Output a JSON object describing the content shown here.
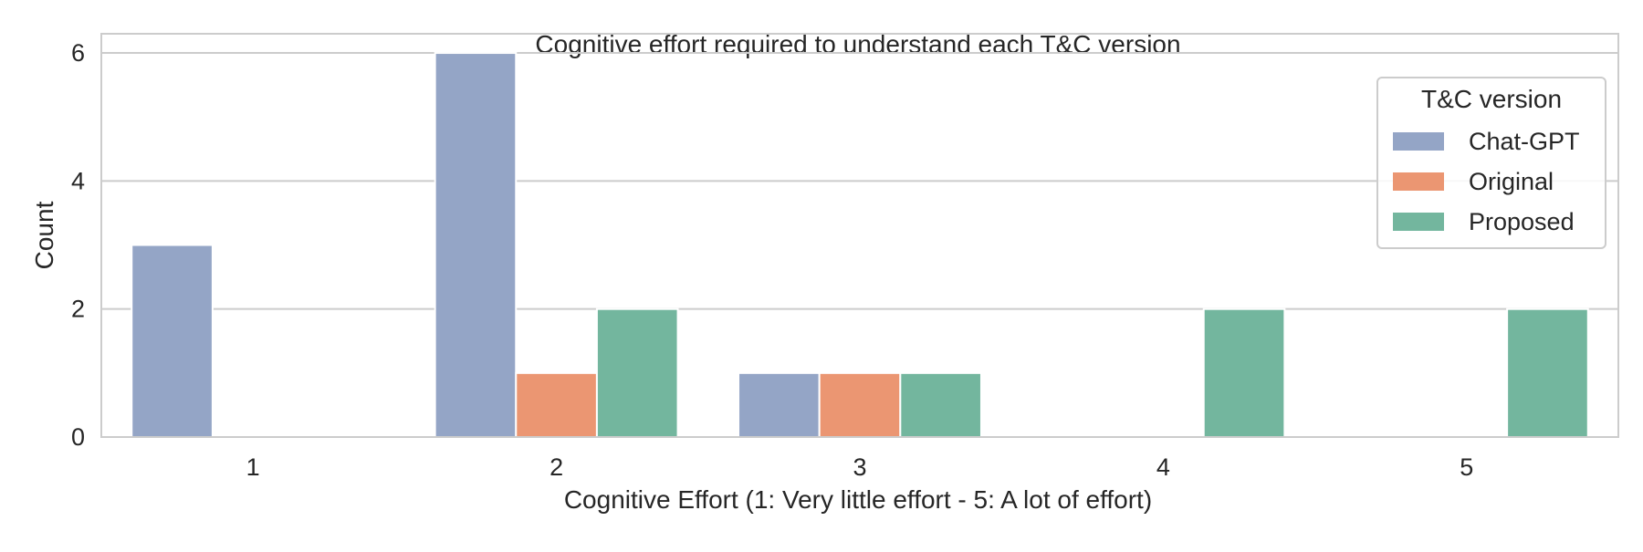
{
  "chart_data": {
    "type": "bar",
    "title": "Cognitive effort required to understand each T&C version",
    "xlabel": "Cognitive Effort (1: Very little effort - 5: A lot of effort)",
    "ylabel": "Count",
    "categories": [
      "1",
      "2",
      "3",
      "4",
      "5"
    ],
    "ylim": [
      0,
      6.3
    ],
    "yticks": [
      "0",
      "2",
      "4",
      "6"
    ],
    "grid": true,
    "legend": {
      "title": "T&C version",
      "placement": "top-right"
    },
    "series": [
      {
        "name": "Chat-GPT",
        "color": "#94a5c6",
        "values": [
          3,
          6,
          1,
          0,
          0
        ]
      },
      {
        "name": "Original",
        "color": "#eb9672",
        "values": [
          0,
          1,
          1,
          0,
          0
        ]
      },
      {
        "name": "Proposed",
        "color": "#73b69e",
        "values": [
          0,
          2,
          1,
          2,
          2
        ]
      }
    ]
  }
}
